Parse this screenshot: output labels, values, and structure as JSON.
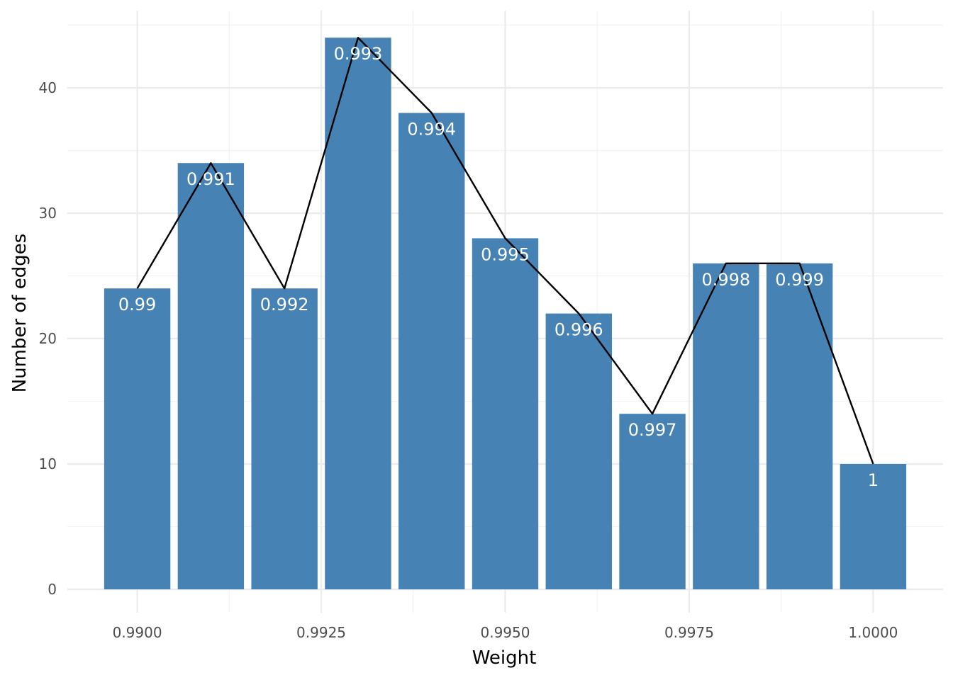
{
  "chart_data": {
    "type": "bar",
    "title": "",
    "xlabel": "Weight",
    "ylabel": "Number of edges",
    "x": [
      0.99,
      0.991,
      0.992,
      0.993,
      0.994,
      0.995,
      0.996,
      0.997,
      0.998,
      0.999,
      1.0
    ],
    "values": [
      24,
      34,
      24,
      44,
      38,
      28,
      22,
      14,
      26,
      26,
      10
    ],
    "bar_labels": [
      "0.99",
      "0.991",
      "0.992",
      "0.993",
      "0.994",
      "0.995",
      "0.996",
      "0.997",
      "0.998",
      "0.999",
      "1"
    ],
    "overlay": {
      "type": "line",
      "values": [
        24,
        34,
        24,
        44,
        38,
        28,
        22,
        14,
        26,
        26,
        10
      ],
      "color": "#000000"
    },
    "bar_width": 0.0009,
    "xlim": [
      0.98905,
      1.00095
    ],
    "ylim": [
      0,
      45
    ],
    "x_ticks": [
      0.99,
      0.9925,
      0.995,
      0.9975,
      1.0
    ],
    "x_tick_labels": [
      "0.9900",
      "0.9925",
      "0.9950",
      "0.9975",
      "1.0000"
    ],
    "x_minor_ticks": [
      0.99125,
      0.99375,
      0.99625,
      0.99875
    ],
    "y_ticks": [
      0,
      10,
      20,
      30,
      40
    ],
    "y_tick_labels": [
      "0",
      "10",
      "20",
      "30",
      "40"
    ],
    "y_minor_ticks": [
      5,
      15,
      25,
      35,
      45
    ],
    "grid": true,
    "legend": "none",
    "colors": {
      "bar": "#4682b4",
      "line": "#000000",
      "grid": "#ebebeb",
      "bar_label": "#ffffff"
    }
  }
}
